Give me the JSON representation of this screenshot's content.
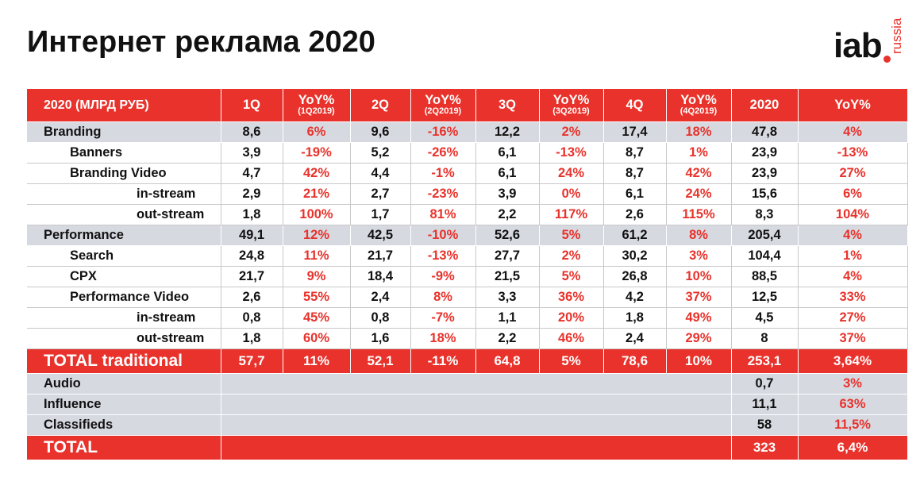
{
  "title": "Интернет реклама 2020",
  "logo": {
    "main": "iab",
    "sub": "russia"
  },
  "table": {
    "header": {
      "label": "2020 (МЛРД РУБ)",
      "q1": "1Q",
      "yoy1": "YoY%",
      "yoy1_sub": "(1Q2019)",
      "q2": "2Q",
      "yoy2": "YoY%",
      "yoy2_sub": "(2Q2019)",
      "q3": "3Q",
      "yoy3": "YoY%",
      "yoy3_sub": "(3Q2019)",
      "q4": "4Q",
      "yoy4": "YoY%",
      "yoy4_sub": "(4Q2019)",
      "year": "2020",
      "yoy_year": "YoY%"
    },
    "rows": [
      {
        "label": "Branding",
        "q1": "8,6",
        "yoy1": "6%",
        "q2": "9,6",
        "yoy2": "-16%",
        "q3": "12,2",
        "yoy3": "2%",
        "q4": "17,4",
        "yoy4": "18%",
        "year": "47,8",
        "yoy_year": "4%"
      },
      {
        "label": "Banners",
        "q1": "3,9",
        "yoy1": "-19%",
        "q2": "5,2",
        "yoy2": "-26%",
        "q3": "6,1",
        "yoy3": "-13%",
        "q4": "8,7",
        "yoy4": "1%",
        "year": "23,9",
        "yoy_year": "-13%"
      },
      {
        "label": "Branding Video",
        "q1": "4,7",
        "yoy1": "42%",
        "q2": "4,4",
        "yoy2": "-1%",
        "q3": "6,1",
        "yoy3": "24%",
        "q4": "8,7",
        "yoy4": "42%",
        "year": "23,9",
        "yoy_year": "27%"
      },
      {
        "label": "in-stream",
        "q1": "2,9",
        "yoy1": "21%",
        "q2": "2,7",
        "yoy2": "-23%",
        "q3": "3,9",
        "yoy3": "0%",
        "q4": "6,1",
        "yoy4": "24%",
        "year": "15,6",
        "yoy_year": "6%"
      },
      {
        "label": "out-stream",
        "q1": "1,8",
        "yoy1": "100%",
        "q2": "1,7",
        "yoy2": "81%",
        "q3": "2,2",
        "yoy3": "117%",
        "q4": "2,6",
        "yoy4": "115%",
        "year": "8,3",
        "yoy_year": "104%"
      },
      {
        "label": "Performance",
        "q1": "49,1",
        "yoy1": "12%",
        "q2": "42,5",
        "yoy2": "-10%",
        "q3": "52,6",
        "yoy3": "5%",
        "q4": "61,2",
        "yoy4": "8%",
        "year": "205,4",
        "yoy_year": "4%"
      },
      {
        "label": "Search",
        "q1": "24,8",
        "yoy1": "11%",
        "q2": "21,7",
        "yoy2": "-13%",
        "q3": "27,7",
        "yoy3": "2%",
        "q4": "30,2",
        "yoy4": "3%",
        "year": "104,4",
        "yoy_year": "1%"
      },
      {
        "label": "CPX",
        "q1": "21,7",
        "yoy1": "9%",
        "q2": "18,4",
        "yoy2": "-9%",
        "q3": "21,5",
        "yoy3": "5%",
        "q4": "26,8",
        "yoy4": "10%",
        "year": "88,5",
        "yoy_year": "4%"
      },
      {
        "label": "Performance Video",
        "q1": "2,6",
        "yoy1": "55%",
        "q2": "2,4",
        "yoy2": "8%",
        "q3": "3,3",
        "yoy3": "36%",
        "q4": "4,2",
        "yoy4": "37%",
        "year": "12,5",
        "yoy_year": "33%"
      },
      {
        "label": "in-stream",
        "q1": "0,8",
        "yoy1": "45%",
        "q2": "0,8",
        "yoy2": "-7%",
        "q3": "1,1",
        "yoy3": "20%",
        "q4": "1,8",
        "yoy4": "49%",
        "year": "4,5",
        "yoy_year": "27%"
      },
      {
        "label": "out-stream",
        "q1": "1,8",
        "yoy1": "60%",
        "q2": "1,6",
        "yoy2": "18%",
        "q3": "2,2",
        "yoy3": "46%",
        "q4": "2,4",
        "yoy4": "29%",
        "year": "8",
        "yoy_year": "37%"
      }
    ],
    "total_traditional": {
      "label": "TOTAL traditional",
      "q1": "57,7",
      "yoy1": "11%",
      "q2": "52,1",
      "yoy2": "-11%",
      "q3": "64,8",
      "yoy3": "5%",
      "q4": "78,6",
      "yoy4": "10%",
      "year": "253,1",
      "yoy_year": "3,64%"
    },
    "other": [
      {
        "label": "Audio",
        "year": "0,7",
        "yoy_year": "3%"
      },
      {
        "label": "Influence",
        "year": "11,1",
        "yoy_year": "63%"
      },
      {
        "label": "Classifieds",
        "year": "58",
        "yoy_year": "11,5%"
      }
    ],
    "total": {
      "label": "TOTAL",
      "year": "323",
      "yoy_year": "6,4%"
    }
  }
}
